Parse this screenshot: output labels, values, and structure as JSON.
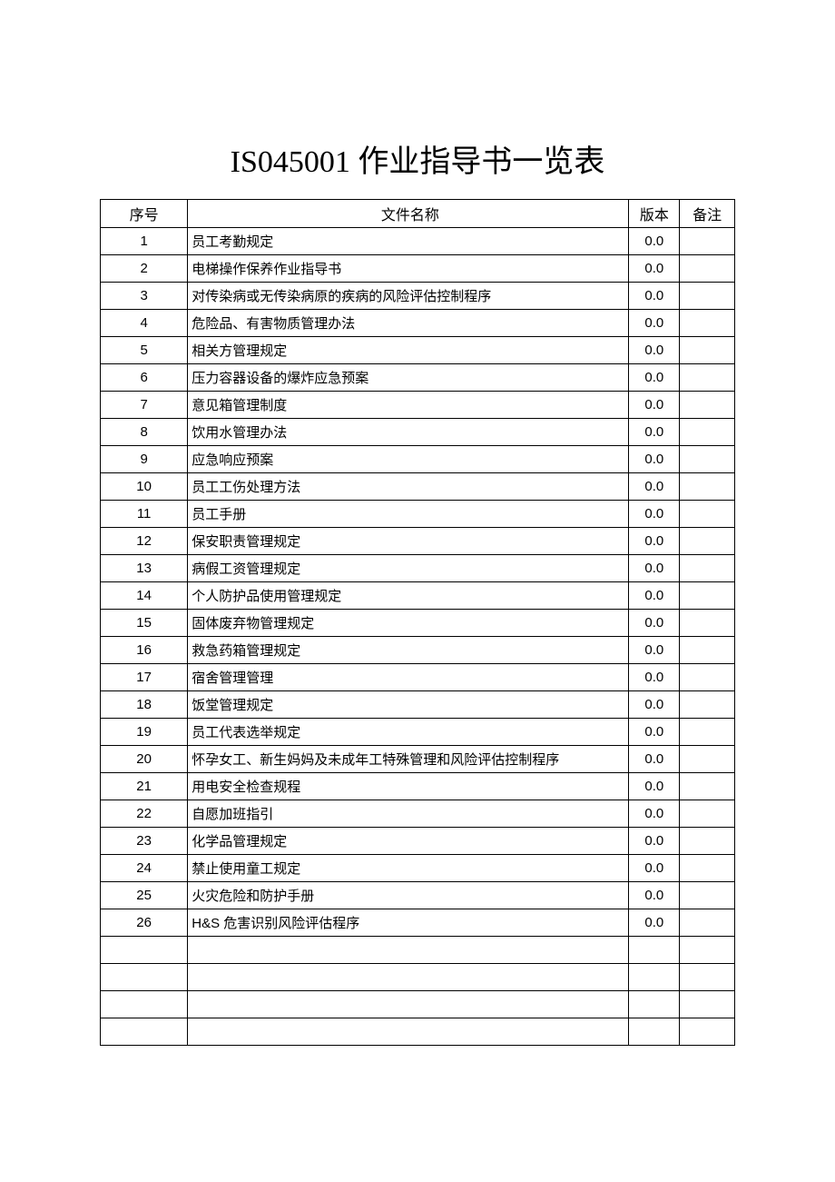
{
  "title": "IS045001 作业指导书一览表",
  "table": {
    "headers": {
      "seq": "序号",
      "name": "文件名称",
      "version": "版本",
      "remark": "备注"
    },
    "rows": [
      {
        "seq": "1",
        "name": "员工考勤规定",
        "version": "0.0",
        "remark": ""
      },
      {
        "seq": "2",
        "name": "电梯操作保养作业指导书",
        "version": "0.0",
        "remark": ""
      },
      {
        "seq": "3",
        "name": "对传染病或无传染病原的疾病的风险评估控制程序",
        "version": "0.0",
        "remark": ""
      },
      {
        "seq": "4",
        "name": "危险品、有害物质管理办法",
        "version": "0.0",
        "remark": ""
      },
      {
        "seq": "5",
        "name": "相关方管理规定",
        "version": "0.0",
        "remark": ""
      },
      {
        "seq": "6",
        "name": "压力容器设备的爆炸应急预案",
        "version": "0.0",
        "remark": ""
      },
      {
        "seq": "7",
        "name": "意见箱管理制度",
        "version": "0.0",
        "remark": ""
      },
      {
        "seq": "8",
        "name": "饮用水管理办法",
        "version": "0.0",
        "remark": ""
      },
      {
        "seq": "9",
        "name": "应急响应预案",
        "version": "0.0",
        "remark": ""
      },
      {
        "seq": "10",
        "name": "员工工伤处理方法",
        "version": "0.0",
        "remark": ""
      },
      {
        "seq": "11",
        "name": "员工手册",
        "version": "0.0",
        "remark": ""
      },
      {
        "seq": "12",
        "name": "保安职责管理规定",
        "version": "0.0",
        "remark": ""
      },
      {
        "seq": "13",
        "name": "病假工资管理规定",
        "version": "0.0",
        "remark": ""
      },
      {
        "seq": "14",
        "name": "个人防护品使用管理规定",
        "version": "0.0",
        "remark": ""
      },
      {
        "seq": "15",
        "name": "固体废弃物管理规定",
        "version": "0.0",
        "remark": ""
      },
      {
        "seq": "16",
        "name": "救急药箱管理规定",
        "version": "0.0",
        "remark": ""
      },
      {
        "seq": "17",
        "name": "宿舍管理管理",
        "version": "0.0",
        "remark": ""
      },
      {
        "seq": "18",
        "name": "饭堂管理规定",
        "version": "0.0",
        "remark": ""
      },
      {
        "seq": "19",
        "name": "员工代表选举规定",
        "version": "0.0",
        "remark": ""
      },
      {
        "seq": "20",
        "name": "怀孕女工、新生妈妈及未成年工特殊管理和风险评估控制程序",
        "version": "0.0",
        "remark": ""
      },
      {
        "seq": "21",
        "name": "用电安全检查规程",
        "version": "0.0",
        "remark": ""
      },
      {
        "seq": "22",
        "name": "自愿加班指引",
        "version": "0.0",
        "remark": ""
      },
      {
        "seq": "23",
        "name": "化学品管理规定",
        "version": "0.0",
        "remark": ""
      },
      {
        "seq": "24",
        "name": "禁止使用童工规定",
        "version": "0.0",
        "remark": ""
      },
      {
        "seq": "25",
        "name": "火灾危险和防护手册",
        "version": "0.0",
        "remark": ""
      },
      {
        "seq": "26",
        "name": "H&S 危害识别风险评估程序",
        "version": "0.0",
        "remark": ""
      }
    ],
    "emptyRows": 4
  }
}
